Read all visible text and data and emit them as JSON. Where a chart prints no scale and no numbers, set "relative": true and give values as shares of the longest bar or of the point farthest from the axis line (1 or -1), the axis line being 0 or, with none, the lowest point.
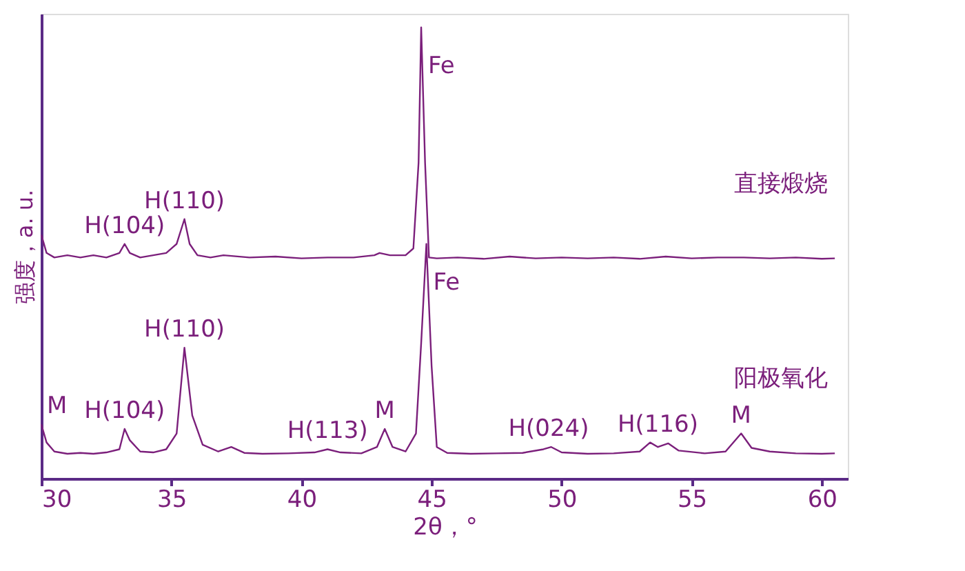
{
  "chart_data": {
    "type": "line",
    "relative": true,
    "xlabel": "2θ，°",
    "ylabel": "强度，a. u.",
    "xlim": [
      30,
      61
    ],
    "xticks": [
      30,
      35,
      40,
      45,
      50,
      55,
      60
    ],
    "grid": false,
    "legend": false,
    "marker": "none",
    "line_style": "solid",
    "tick_labels": "x",
    "series": [
      {
        "name": "直接煅烧",
        "color": "#7b1f7b",
        "x": [
          30,
          30.2,
          30.5,
          31,
          31.5,
          32,
          32.5,
          33,
          33.2,
          33.4,
          33.8,
          34.3,
          34.8,
          35.2,
          35.5,
          35.7,
          36,
          36.5,
          37,
          38,
          39,
          40,
          41,
          42,
          42.8,
          43,
          43.4,
          44,
          44.3,
          44.5,
          44.6,
          44.75,
          44.9,
          45.2,
          46,
          47,
          48,
          49,
          50,
          51,
          52,
          53,
          54,
          55,
          56,
          57,
          58,
          59,
          60,
          60.5
        ],
        "values": [
          0.54,
          0.5,
          0.49,
          0.495,
          0.49,
          0.495,
          0.49,
          0.5,
          0.52,
          0.5,
          0.49,
          0.495,
          0.5,
          0.52,
          0.575,
          0.52,
          0.495,
          0.49,
          0.495,
          0.49,
          0.492,
          0.488,
          0.49,
          0.49,
          0.495,
          0.5,
          0.495,
          0.495,
          0.51,
          0.7,
          1.0,
          0.7,
          0.49,
          0.488,
          0.49,
          0.487,
          0.492,
          0.488,
          0.49,
          0.488,
          0.49,
          0.487,
          0.492,
          0.488,
          0.49,
          0.49,
          0.488,
          0.49,
          0.487,
          0.488
        ]
      },
      {
        "name": "阳极氧化",
        "color": "#7b1f7b",
        "x": [
          30,
          30.2,
          30.5,
          31,
          31.5,
          32,
          32.5,
          33,
          33.2,
          33.4,
          33.8,
          34.3,
          34.8,
          35.2,
          35.5,
          35.8,
          36.2,
          36.8,
          37.3,
          37.8,
          38.5,
          39.5,
          40.5,
          41,
          41.5,
          42.3,
          42.9,
          43.2,
          43.5,
          44,
          44.4,
          44.6,
          44.8,
          45.0,
          45.2,
          45.6,
          46.5,
          47.5,
          48.5,
          49.3,
          49.6,
          50,
          51,
          52,
          53,
          53.4,
          53.7,
          54.1,
          54.5,
          55.5,
          56.3,
          56.9,
          57.3,
          58,
          59,
          60,
          60.5
        ],
        "values": [
          0.12,
          0.08,
          0.06,
          0.055,
          0.057,
          0.055,
          0.058,
          0.065,
          0.11,
          0.085,
          0.06,
          0.058,
          0.065,
          0.1,
          0.29,
          0.14,
          0.075,
          0.06,
          0.07,
          0.057,
          0.055,
          0.056,
          0.058,
          0.065,
          0.058,
          0.056,
          0.07,
          0.11,
          0.07,
          0.06,
          0.1,
          0.3,
          0.52,
          0.25,
          0.07,
          0.057,
          0.055,
          0.056,
          0.057,
          0.065,
          0.07,
          0.058,
          0.055,
          0.056,
          0.06,
          0.08,
          0.07,
          0.078,
          0.062,
          0.056,
          0.06,
          0.1,
          0.068,
          0.06,
          0.056,
          0.055,
          0.056
        ]
      }
    ],
    "annotations": [
      {
        "text": "H(104)",
        "x": 33.2,
        "y": 0.52
      },
      {
        "text": "H(110)",
        "x": 35.5,
        "y": 0.575
      },
      {
        "text": "Fe",
        "x": 44.6,
        "y": 1.0
      },
      {
        "text": "M",
        "x": 30,
        "y": 0.12
      },
      {
        "text": "H(104)",
        "x": 33.2,
        "y": 0.11
      },
      {
        "text": "H(110)",
        "x": 35.5,
        "y": 0.29
      },
      {
        "text": "H(113)",
        "x": 41,
        "y": 0.065
      },
      {
        "text": "M",
        "x": 43.2,
        "y": 0.11
      },
      {
        "text": "Fe",
        "x": 44.8,
        "y": 0.52
      },
      {
        "text": "H(024)",
        "x": 49.5,
        "y": 0.07
      },
      {
        "text": "H(116)",
        "x": 53.7,
        "y": 0.08
      },
      {
        "text": "M",
        "x": 56.9,
        "y": 0.1
      }
    ]
  }
}
